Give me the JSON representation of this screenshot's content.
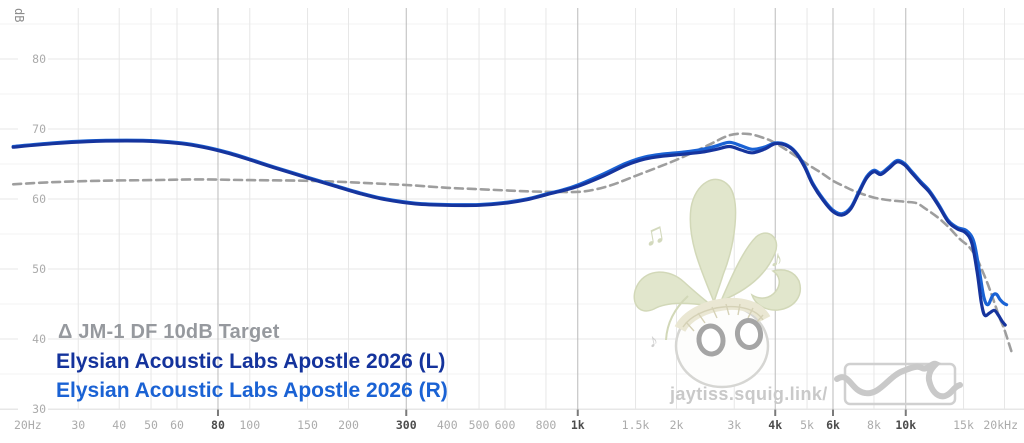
{
  "watermark": {
    "site": "jaytiss.squig.link/",
    "notes": [
      "♫",
      "♪",
      "♪"
    ]
  },
  "colors": {
    "grid": "#e7e7e7",
    "grid_emphasized": "#bbbbbb",
    "grid_minor": "#f3f3f3",
    "tick": "#7a7a7a",
    "axis_label": "#ababab",
    "axis_label_emphasized": "#4c4c4c",
    "db_unit_label": "#8c8c8c",
    "watermark_text": "#c9c9c9",
    "logo": "#cbcbcb",
    "leaf": "#e1e6cc",
    "leaf_outline": "#d2d8b8"
  },
  "chart_data": {
    "type": "line",
    "x_scale": "log",
    "x_range": [
      20,
      20000
    ],
    "ylabel": "dB",
    "y_ticks": [
      30,
      40,
      50,
      60,
      70,
      80
    ],
    "y_minor_ticks": [
      35,
      45,
      55,
      65,
      75,
      85
    ],
    "grid": true,
    "legend_position": "bottom-left",
    "x_ticks": [
      {
        "f": 20,
        "label": "20Hz"
      },
      {
        "f": 30,
        "label": "30"
      },
      {
        "f": 40,
        "label": "40"
      },
      {
        "f": 50,
        "label": "50"
      },
      {
        "f": 60,
        "label": "60"
      },
      {
        "f": 80,
        "label": "80"
      },
      {
        "f": 100,
        "label": "100"
      },
      {
        "f": 150,
        "label": "150"
      },
      {
        "f": 200,
        "label": "200"
      },
      {
        "f": 300,
        "label": "300"
      },
      {
        "f": 400,
        "label": "400"
      },
      {
        "f": 500,
        "label": "500"
      },
      {
        "f": 600,
        "label": "600"
      },
      {
        "f": 800,
        "label": "800"
      },
      {
        "f": 1000,
        "label": "1k"
      },
      {
        "f": 1500,
        "label": "1.5k"
      },
      {
        "f": 2000,
        "label": "2k"
      },
      {
        "f": 3000,
        "label": "3k"
      },
      {
        "f": 4000,
        "label": "4k"
      },
      {
        "f": 5000,
        "label": "5k"
      },
      {
        "f": 6000,
        "label": "6k"
      },
      {
        "f": 8000,
        "label": "8k"
      },
      {
        "f": 10000,
        "label": "10k"
      },
      {
        "f": 15000,
        "label": "15k"
      },
      {
        "f": 20000,
        "label": "20kHz"
      }
    ],
    "emphasized_x": [
      80,
      300,
      1000,
      4000,
      6000,
      10000
    ],
    "series": [
      {
        "name": "Δ JM-1 DF 10dB Target",
        "color": "#9e9e9e",
        "legend_color": "#96999e",
        "style": "dashed",
        "points": [
          [
            19,
            62.1
          ],
          [
            25,
            62.4
          ],
          [
            35,
            62.6
          ],
          [
            50,
            62.7
          ],
          [
            70,
            62.8
          ],
          [
            100,
            62.7
          ],
          [
            150,
            62.6
          ],
          [
            200,
            62.4
          ],
          [
            300,
            62.0
          ],
          [
            400,
            61.6
          ],
          [
            500,
            61.4
          ],
          [
            700,
            61.1
          ],
          [
            900,
            61.0
          ],
          [
            1050,
            61.1
          ],
          [
            1250,
            61.9
          ],
          [
            1500,
            63.3
          ],
          [
            2000,
            65.6
          ],
          [
            2500,
            67.7
          ],
          [
            2900,
            69.1
          ],
          [
            3300,
            69.3
          ],
          [
            3700,
            68.7
          ],
          [
            4000,
            68.0
          ],
          [
            4500,
            66.5
          ],
          [
            5000,
            65.0
          ],
          [
            5500,
            63.8
          ],
          [
            6000,
            62.6
          ],
          [
            6500,
            61.8
          ],
          [
            7000,
            61.1
          ],
          [
            8000,
            60.2
          ],
          [
            9000,
            59.8
          ],
          [
            10000,
            59.6
          ],
          [
            10800,
            59.4
          ],
          [
            11500,
            58.6
          ],
          [
            12500,
            57.4
          ],
          [
            13500,
            56.0
          ],
          [
            14600,
            54.3
          ],
          [
            15500,
            53.3
          ],
          [
            16300,
            51.9
          ],
          [
            17000,
            50.1
          ],
          [
            17800,
            47.8
          ],
          [
            18500,
            45.6
          ],
          [
            19300,
            43.1
          ],
          [
            20000,
            41.3
          ],
          [
            21000,
            38.2
          ]
        ]
      },
      {
        "name": "Elysian Acoustic Labs Apostle 2026 (L)",
        "color": "#16349d",
        "legend_color": "#14339c",
        "style": "solid",
        "points": [
          [
            19,
            67.4
          ],
          [
            25,
            67.9
          ],
          [
            32,
            68.2
          ],
          [
            42,
            68.3
          ],
          [
            52,
            68.2
          ],
          [
            62,
            67.9
          ],
          [
            72,
            67.4
          ],
          [
            85,
            66.6
          ],
          [
            100,
            65.6
          ],
          [
            120,
            64.4
          ],
          [
            150,
            63.0
          ],
          [
            180,
            61.9
          ],
          [
            220,
            60.7
          ],
          [
            260,
            59.9
          ],
          [
            320,
            59.3
          ],
          [
            400,
            59.1
          ],
          [
            500,
            59.1
          ],
          [
            600,
            59.4
          ],
          [
            700,
            59.9
          ],
          [
            800,
            60.6
          ],
          [
            900,
            61.2
          ],
          [
            1000,
            61.8
          ],
          [
            1200,
            63.3
          ],
          [
            1400,
            64.8
          ],
          [
            1600,
            65.7
          ],
          [
            1800,
            66.1
          ],
          [
            2100,
            66.4
          ],
          [
            2400,
            66.7
          ],
          [
            2650,
            67.1
          ],
          [
            2900,
            67.5
          ],
          [
            3150,
            67.0
          ],
          [
            3400,
            66.6
          ],
          [
            3700,
            67.1
          ],
          [
            4000,
            67.9
          ],
          [
            4300,
            67.7
          ],
          [
            4600,
            66.7
          ],
          [
            4900,
            64.7
          ],
          [
            5200,
            62.1
          ],
          [
            5600,
            59.8
          ],
          [
            6000,
            58.2
          ],
          [
            6400,
            57.7
          ],
          [
            6800,
            58.6
          ],
          [
            7200,
            60.9
          ],
          [
            7600,
            63.0
          ],
          [
            8000,
            63.9
          ],
          [
            8400,
            63.5
          ],
          [
            8900,
            64.4
          ],
          [
            9400,
            65.3
          ],
          [
            9900,
            64.9
          ],
          [
            10400,
            63.8
          ],
          [
            11100,
            62.3
          ],
          [
            11800,
            61.0
          ],
          [
            12600,
            59.0
          ],
          [
            13500,
            56.7
          ],
          [
            14400,
            55.7
          ],
          [
            15200,
            55.2
          ],
          [
            15900,
            53.7
          ],
          [
            16500,
            49.6
          ],
          [
            17000,
            45.2
          ],
          [
            17400,
            43.4
          ],
          [
            18000,
            43.7
          ],
          [
            18600,
            44.1
          ],
          [
            19100,
            43.5
          ],
          [
            19700,
            42.5
          ],
          [
            20100,
            42.0
          ]
        ]
      },
      {
        "name": "Elysian Acoustic Labs Apostle 2026 (R)",
        "color": "#1a62d4",
        "legend_color": "#1a62d4",
        "style": "solid",
        "points": [
          [
            19,
            67.5
          ],
          [
            25,
            68.0
          ],
          [
            32,
            68.3
          ],
          [
            42,
            68.4
          ],
          [
            52,
            68.3
          ],
          [
            62,
            68.0
          ],
          [
            72,
            67.5
          ],
          [
            85,
            66.7
          ],
          [
            100,
            65.7
          ],
          [
            120,
            64.5
          ],
          [
            150,
            63.1
          ],
          [
            180,
            62.0
          ],
          [
            220,
            60.8
          ],
          [
            260,
            60.0
          ],
          [
            320,
            59.4
          ],
          [
            400,
            59.2
          ],
          [
            500,
            59.2
          ],
          [
            600,
            59.5
          ],
          [
            700,
            60.0
          ],
          [
            800,
            60.7
          ],
          [
            900,
            61.3
          ],
          [
            1000,
            62.0
          ],
          [
            1200,
            63.6
          ],
          [
            1400,
            65.1
          ],
          [
            1600,
            66.0
          ],
          [
            1800,
            66.4
          ],
          [
            2100,
            66.7
          ],
          [
            2400,
            67.1
          ],
          [
            2650,
            67.6
          ],
          [
            2900,
            68.1
          ],
          [
            3150,
            67.6
          ],
          [
            3400,
            67.1
          ],
          [
            3700,
            67.4
          ],
          [
            4000,
            68.0
          ],
          [
            4300,
            67.8
          ],
          [
            4600,
            66.8
          ],
          [
            4900,
            64.9
          ],
          [
            5200,
            62.3
          ],
          [
            5600,
            60.0
          ],
          [
            6000,
            58.4
          ],
          [
            6400,
            57.9
          ],
          [
            6800,
            58.8
          ],
          [
            7200,
            61.1
          ],
          [
            7600,
            63.2
          ],
          [
            8000,
            64.1
          ],
          [
            8400,
            63.7
          ],
          [
            8900,
            64.6
          ],
          [
            9400,
            65.5
          ],
          [
            9900,
            65.1
          ],
          [
            10400,
            64.0
          ],
          [
            11100,
            62.5
          ],
          [
            11800,
            61.2
          ],
          [
            12600,
            59.2
          ],
          [
            13500,
            56.9
          ],
          [
            14400,
            55.9
          ],
          [
            15300,
            55.5
          ],
          [
            16100,
            54.0
          ],
          [
            16700,
            50.2
          ],
          [
            17300,
            46.0
          ],
          [
            17800,
            44.9
          ],
          [
            18400,
            46.2
          ],
          [
            18900,
            46.4
          ],
          [
            19400,
            45.6
          ],
          [
            19900,
            45.1
          ],
          [
            20300,
            44.9
          ]
        ]
      }
    ]
  }
}
